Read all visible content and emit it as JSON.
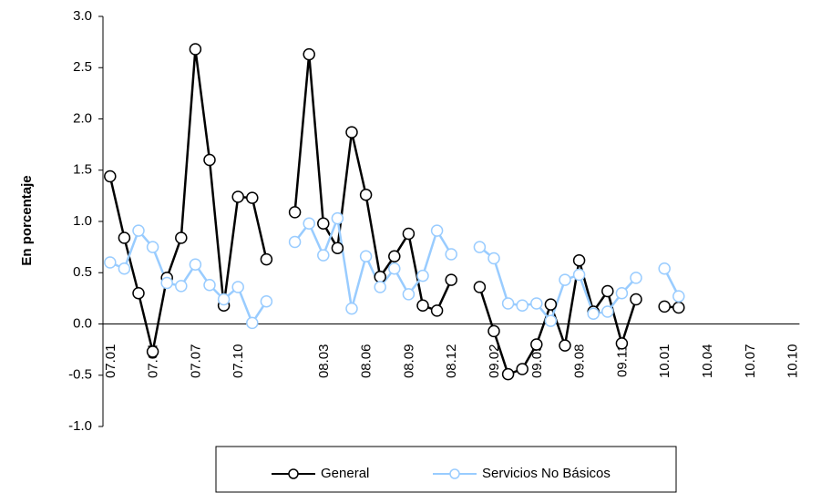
{
  "chart_data": {
    "type": "line",
    "ylabel": "En porcentaje",
    "categories": [
      "07.01",
      null,
      null,
      "07.04",
      null,
      null,
      "07.07",
      null,
      null,
      "07.10",
      null,
      null,
      null,
      null,
      null,
      "08.03",
      null,
      null,
      "08.06",
      null,
      null,
      "08.09",
      null,
      null,
      "08.12",
      null,
      null,
      "09.02",
      null,
      null,
      "09.05",
      null,
      null,
      "09.08",
      null,
      null,
      "09.11",
      null,
      null,
      "10.01",
      null,
      null,
      "10.04",
      null,
      null,
      "10.07",
      null,
      null,
      "10.10"
    ],
    "series": [
      {
        "name": "General",
        "color": "#000000",
        "values": [
          1.44,
          0.84,
          0.3,
          -0.27,
          0.45,
          0.84,
          2.68,
          1.6,
          0.18,
          1.24,
          1.23,
          0.63,
          null,
          1.09,
          2.63,
          0.98,
          0.74,
          1.87,
          1.26,
          0.46,
          0.66,
          0.88,
          0.18,
          0.13,
          0.43,
          null,
          0.36,
          -0.07,
          -0.49,
          -0.44,
          -0.2,
          0.19,
          -0.21,
          0.62,
          0.12,
          0.32,
          -0.19,
          0.24,
          null,
          0.17,
          0.16,
          null,
          null,
          null,
          null,
          null,
          null,
          null,
          null
        ]
      },
      {
        "name": "Servicios No Básicos",
        "color": "#99ccff",
        "values": [
          0.6,
          0.54,
          0.91,
          0.75,
          0.4,
          0.37,
          0.58,
          0.38,
          0.24,
          0.36,
          0.01,
          0.22,
          null,
          0.8,
          0.98,
          0.67,
          1.03,
          0.15,
          0.66,
          0.36,
          0.54,
          0.29,
          0.47,
          0.91,
          0.68,
          null,
          0.75,
          0.64,
          0.2,
          0.18,
          0.2,
          0.03,
          0.43,
          0.48,
          0.1,
          0.12,
          0.3,
          0.45,
          null,
          0.54,
          0.27,
          null,
          null,
          null,
          null,
          null,
          null,
          null,
          null
        ]
      }
    ],
    "ylim": [
      -1.0,
      3.0
    ],
    "yticks": [
      {
        "value": -1,
        "label": "-1.0"
      },
      {
        "value": -0.5,
        "label": "-0.5"
      },
      {
        "value": 0,
        "label": "0.0"
      },
      {
        "value": 0.5,
        "label": "0.5"
      },
      {
        "value": 1,
        "label": "1.0"
      },
      {
        "value": 1.5,
        "label": "1.5"
      },
      {
        "value": 2,
        "label": "2.0"
      },
      {
        "value": 2.5,
        "label": "2.5"
      },
      {
        "value": 3,
        "label": "3.0"
      }
    ],
    "legend": "bottom"
  }
}
